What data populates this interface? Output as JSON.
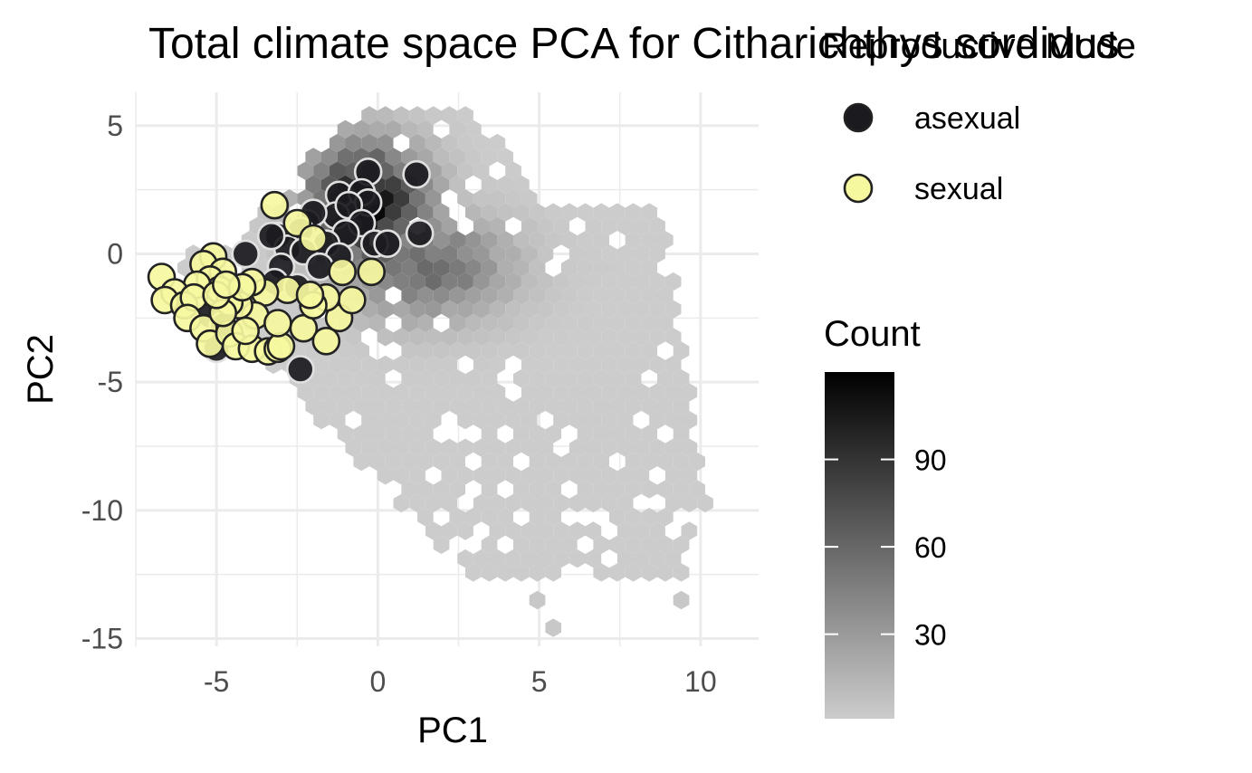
{
  "chart_data": {
    "type": "scatter",
    "title": "Total climate space PCA for Citharichthys sordidus",
    "legend_title": "Reproductive Mode",
    "xlabel": "PC1",
    "ylabel": "PC2",
    "xlim": [
      -7.5,
      11.8
    ],
    "ylim": [
      -15.3,
      6.3
    ],
    "x_ticks": [
      -5,
      0,
      5,
      10
    ],
    "y_ticks": [
      5,
      0,
      -5,
      -10,
      -15
    ],
    "x_tick_labels": [
      "-5",
      "0",
      "5",
      "10"
    ],
    "y_tick_labels": [
      "5",
      "0",
      "-5",
      "-10",
      "-15"
    ],
    "grid": true,
    "legend_position": "right",
    "background_layer": {
      "type": "hexbin",
      "legend_title": "Count",
      "color_low": "#cccccc",
      "color_high": "#000000",
      "count_range": [
        1,
        120
      ],
      "colorbar_ticks": [
        30,
        60,
        90
      ],
      "colorbar_tick_labels": [
        "30",
        "60",
        "90"
      ]
    },
    "series": [
      {
        "name": "asexual",
        "color": "#1a1a1f",
        "points": [
          [
            1.2,
            3.1
          ],
          [
            -0.3,
            3.2
          ],
          [
            -1.2,
            2.3
          ],
          [
            -0.5,
            2.4
          ],
          [
            -0.3,
            2.0
          ],
          [
            -1.3,
            1.5
          ],
          [
            -2.2,
            1.2
          ],
          [
            -2.0,
            1.6
          ],
          [
            -0.9,
            1.9
          ],
          [
            -0.5,
            1.2
          ],
          [
            -0.1,
            0.4
          ],
          [
            0.3,
            0.4
          ],
          [
            1.3,
            0.8
          ],
          [
            -1.0,
            0.8
          ],
          [
            -2.4,
            0.9
          ],
          [
            -3.1,
            0.7
          ],
          [
            -2.8,
            0.2
          ],
          [
            -3.3,
            0.7
          ],
          [
            -1.6,
            0.4
          ],
          [
            -2.3,
            0.1
          ],
          [
            -4.1,
            0.0
          ],
          [
            -1.2,
            -0.1
          ],
          [
            -1.8,
            -0.5
          ],
          [
            -3.0,
            -0.5
          ],
          [
            -3.2,
            -1.1
          ],
          [
            -2.5,
            -1.3
          ],
          [
            -5.2,
            -2.4
          ],
          [
            -4.8,
            -2.8
          ],
          [
            -5.0,
            -3.7
          ],
          [
            -2.4,
            -4.5
          ]
        ]
      },
      {
        "name": "sexual",
        "color": "#f6f8a0",
        "points": [
          [
            -3.2,
            1.9
          ],
          [
            -2.5,
            1.2
          ],
          [
            -2.0,
            0.6
          ],
          [
            -5.1,
            -0.1
          ],
          [
            -5.4,
            -0.4
          ],
          [
            -4.8,
            -0.7
          ],
          [
            -5.2,
            -1.0
          ],
          [
            -4.9,
            -1.4
          ],
          [
            -5.6,
            -1.2
          ],
          [
            -6.7,
            -0.9
          ],
          [
            -6.3,
            -1.5
          ],
          [
            -6.6,
            -1.8
          ],
          [
            -6.0,
            -2.0
          ],
          [
            -5.7,
            -1.7
          ],
          [
            -5.9,
            -2.5
          ],
          [
            -5.4,
            -2.9
          ],
          [
            -5.2,
            -3.5
          ],
          [
            -4.6,
            -3.1
          ],
          [
            -4.4,
            -3.6
          ],
          [
            -3.9,
            -3.7
          ],
          [
            -3.4,
            -3.8
          ],
          [
            -3.1,
            -3.7
          ],
          [
            -3.0,
            -3.6
          ],
          [
            -2.3,
            -2.9
          ],
          [
            -1.6,
            -3.4
          ],
          [
            -1.2,
            -2.5
          ],
          [
            -0.8,
            -1.8
          ],
          [
            -1.1,
            -0.7
          ],
          [
            -0.2,
            -0.7
          ],
          [
            -1.6,
            -1.7
          ],
          [
            -2.0,
            -2.0
          ],
          [
            -2.8,
            -1.4
          ],
          [
            -3.5,
            -1.5
          ],
          [
            -3.9,
            -1.1
          ],
          [
            -3.8,
            -2.4
          ],
          [
            -4.3,
            -2.0
          ],
          [
            -4.6,
            -1.9
          ],
          [
            -4.8,
            -2.3
          ],
          [
            -5.0,
            -1.6
          ],
          [
            -4.2,
            -1.3
          ],
          [
            -4.7,
            -1.2
          ],
          [
            -2.1,
            -1.6
          ],
          [
            -3.1,
            -2.7
          ],
          [
            -4.1,
            -3.0
          ]
        ]
      }
    ]
  }
}
